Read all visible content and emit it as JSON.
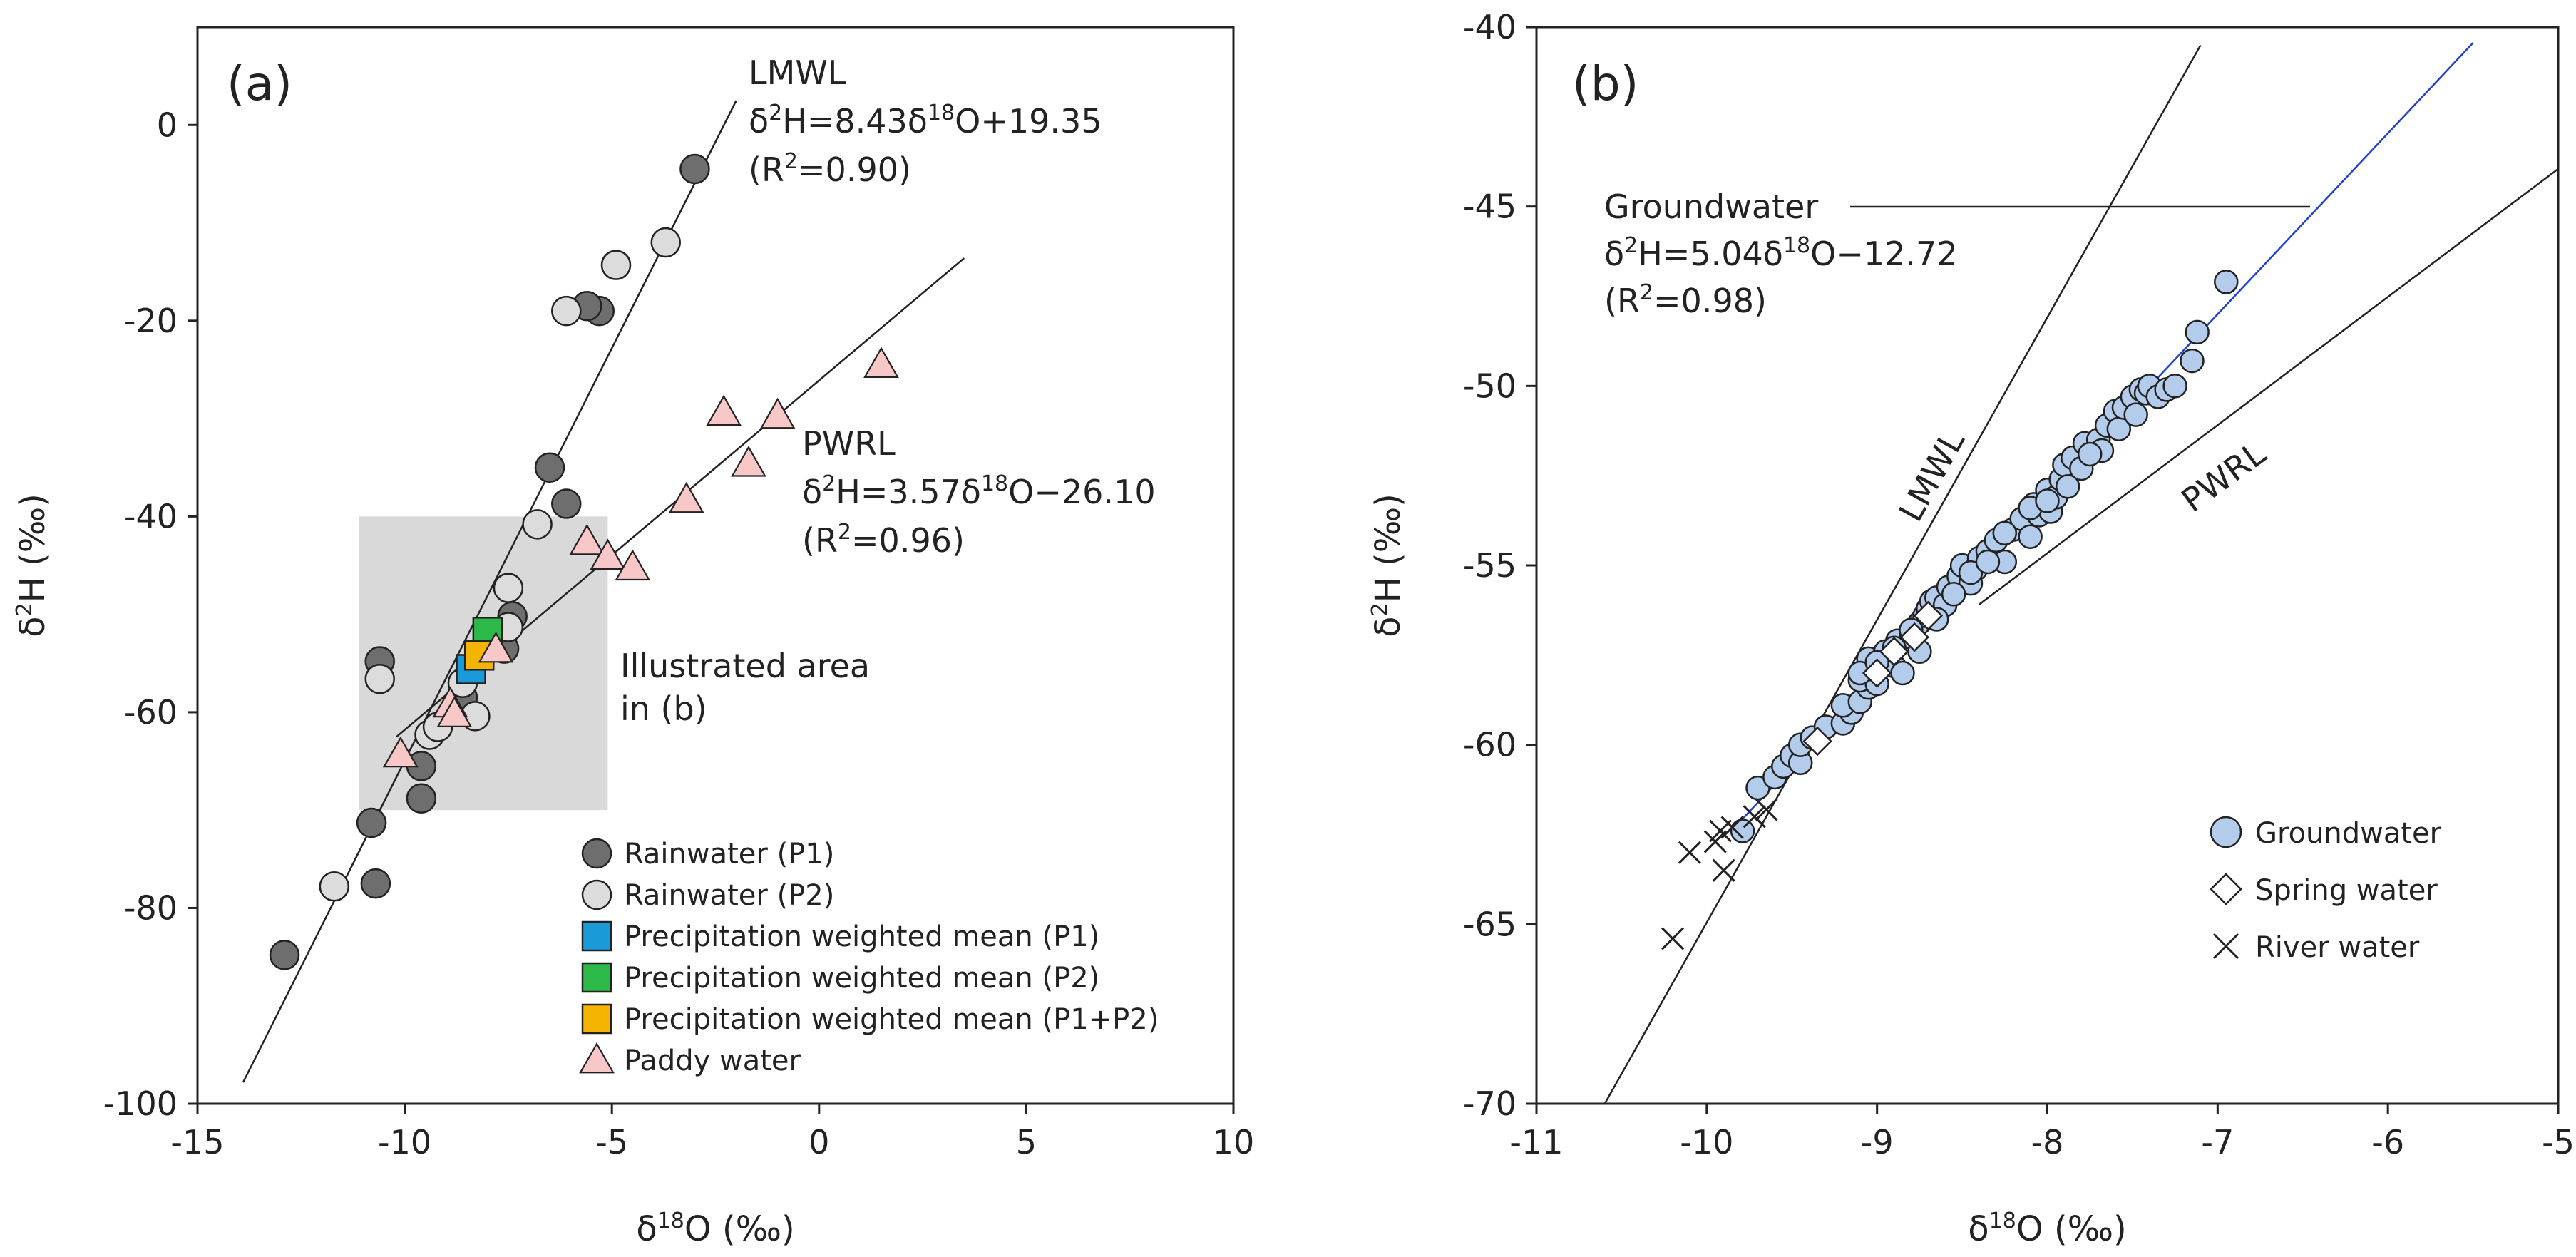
{
  "chart_data": [
    {
      "panel": "(a)",
      "type": "scatter",
      "xlabel": "δ18O (‰)",
      "ylabel": "δ2H (‰)",
      "xlim": [
        -15,
        10
      ],
      "ylim": [
        -100,
        10
      ],
      "xticks": [
        -15,
        -10,
        -5,
        0,
        5,
        10
      ],
      "yticks": [
        -100,
        -80,
        -60,
        -40,
        -20,
        0
      ],
      "shaded_area": {
        "x": [
          -11.1,
          -5.1
        ],
        "y": [
          -70,
          -40
        ],
        "label_line1": "Illustrated area",
        "label_line2": "in (b)"
      },
      "lines": [
        {
          "name": "LMWL",
          "slope": 8.43,
          "intercept": 19.35,
          "x_range": [
            -13.9,
            -2.0
          ],
          "eq_pre": "δ",
          "eq_sup1": "2",
          "eq_mid": "H=8.43δ",
          "eq_sup2": "18",
          "eq_post": "O+19.35",
          "r2_pre": "(R",
          "r2_sup": "2",
          "r2_post": "=0.90)"
        },
        {
          "name": "PWRL",
          "slope": 3.57,
          "intercept": -26.1,
          "x_range": [
            -10.2,
            3.5
          ],
          "eq_pre": "δ",
          "eq_sup1": "2",
          "eq_mid": "H=3.57δ",
          "eq_sup2": "18",
          "eq_post": "O−26.10",
          "r2_pre": "(R",
          "r2_sup": "2",
          "r2_post": "=0.96)"
        }
      ],
      "series": [
        {
          "name": "Rainwater (P1)",
          "marker": "circle",
          "color": "#6e6e6e",
          "points": [
            [
              -12.9,
              -84.8
            ],
            [
              -10.7,
              -77.5
            ],
            [
              -10.8,
              -71.3
            ],
            [
              -9.6,
              -68.8
            ],
            [
              -9.6,
              -65.5
            ],
            [
              -10.6,
              -54.8
            ],
            [
              -8.6,
              -58.5
            ],
            [
              -7.4,
              -50.2
            ],
            [
              -7.6,
              -53.5
            ],
            [
              -6.1,
              -38.7
            ],
            [
              -6.5,
              -35.0
            ],
            [
              -5.3,
              -19.0
            ],
            [
              -5.6,
              -18.5
            ],
            [
              -3.0,
              -4.5
            ]
          ]
        },
        {
          "name": "Rainwater (P2)",
          "marker": "circle",
          "color": "#dcdcdc",
          "points": [
            [
              -11.7,
              -77.8
            ],
            [
              -10.6,
              -56.6
            ],
            [
              -9.4,
              -62.3
            ],
            [
              -9.2,
              -61.5
            ],
            [
              -8.3,
              -60.4
            ],
            [
              -8.6,
              -57.0
            ],
            [
              -7.5,
              -51.3
            ],
            [
              -7.5,
              -47.3
            ],
            [
              -6.8,
              -40.8
            ],
            [
              -6.1,
              -19.0
            ],
            [
              -4.9,
              -14.3
            ],
            [
              -3.7,
              -12.0
            ]
          ]
        },
        {
          "name": "Precipitation weighted mean (P1)",
          "marker": "square",
          "color": "#1b9ad9",
          "points": [
            [
              -8.4,
              -55.6
            ]
          ]
        },
        {
          "name": "Precipitation weighted mean (P2)",
          "marker": "square",
          "color": "#2db84a",
          "points": [
            [
              -8.0,
              -51.8
            ]
          ]
        },
        {
          "name": "Precipitation weighted mean (P1+P2)",
          "marker": "square",
          "color": "#f4b400",
          "points": [
            [
              -8.2,
              -54.2
            ]
          ]
        },
        {
          "name": "Paddy water",
          "marker": "triangle",
          "color": "#f8c7c7",
          "points": [
            [
              -10.1,
              -64.3
            ],
            [
              -8.9,
              -59.2
            ],
            [
              -8.8,
              -60.2
            ],
            [
              -7.8,
              -53.6
            ],
            [
              -5.6,
              -42.6
            ],
            [
              -5.1,
              -44.1
            ],
            [
              -4.5,
              -45.2
            ],
            [
              -3.2,
              -38.3
            ],
            [
              -2.3,
              -29.4
            ],
            [
              -1.7,
              -34.6
            ],
            [
              -1.0,
              -29.7
            ],
            [
              1.5,
              -24.5
            ]
          ]
        }
      ]
    },
    {
      "panel": "(b)",
      "type": "scatter",
      "xlabel": "δ18O (‰)",
      "ylabel": "δ2H (‰)",
      "xlim": [
        -11,
        -5
      ],
      "ylim": [
        -70,
        -40
      ],
      "xticks": [
        -11,
        -10,
        -9,
        -8,
        -7,
        -6,
        -5
      ],
      "yticks": [
        -70,
        -65,
        -60,
        -55,
        -50,
        -45,
        -40
      ],
      "lines": [
        {
          "name": "LMWL",
          "slope": 8.43,
          "intercept": 19.35,
          "x_range": [
            -10.6,
            -7.1
          ],
          "label": "LMWL"
        },
        {
          "name": "PWRL",
          "slope": 3.57,
          "intercept": -26.1,
          "x_range": [
            -8.4,
            -5.0
          ],
          "label": "PWRL"
        },
        {
          "name": "Groundwater",
          "slope": 5.04,
          "intercept": -12.72,
          "x_range": [
            -9.8,
            -5.5
          ],
          "color": "#1f3fd8",
          "title": "Groundwater",
          "eq_pre": "δ",
          "eq_sup1": "2",
          "eq_mid": "H=5.04δ",
          "eq_sup2": "18",
          "eq_post": "O−12.72",
          "r2_pre": "(R",
          "r2_sup": "2",
          "r2_post": "=0.98)"
        }
      ],
      "series": [
        {
          "name": "Groundwater",
          "marker": "circle",
          "color": "#b4ccec",
          "points": [
            [
              -9.79,
              -62.4
            ],
            [
              -9.7,
              -61.2
            ],
            [
              -9.6,
              -60.9
            ],
            [
              -9.55,
              -60.6
            ],
            [
              -9.5,
              -60.3
            ],
            [
              -9.45,
              -60.5
            ],
            [
              -9.45,
              -60.0
            ],
            [
              -9.38,
              -59.8
            ],
            [
              -9.3,
              -59.5
            ],
            [
              -9.2,
              -59.4
            ],
            [
              -9.15,
              -59.1
            ],
            [
              -9.2,
              -58.9
            ],
            [
              -9.1,
              -58.8
            ],
            [
              -9.05,
              -58.4
            ],
            [
              -9.1,
              -58.2
            ],
            [
              -9.0,
              -58.3
            ],
            [
              -9.02,
              -57.9
            ],
            [
              -9.05,
              -57.6
            ],
            [
              -8.95,
              -57.4
            ],
            [
              -8.9,
              -57.8
            ],
            [
              -8.88,
              -57.1
            ],
            [
              -8.85,
              -58.0
            ],
            [
              -8.8,
              -57.0
            ],
            [
              -8.75,
              -56.6
            ],
            [
              -8.72,
              -56.4
            ],
            [
              -8.75,
              -57.4
            ],
            [
              -8.7,
              -56.2
            ],
            [
              -8.68,
              -56.0
            ],
            [
              -8.65,
              -55.9
            ],
            [
              -8.6,
              -56.1
            ],
            [
              -8.58,
              -55.6
            ],
            [
              -8.52,
              -55.3
            ],
            [
              -8.5,
              -55.0
            ],
            [
              -8.45,
              -55.5
            ],
            [
              -8.42,
              -55.1
            ],
            [
              -8.4,
              -54.8
            ],
            [
              -8.35,
              -54.6
            ],
            [
              -8.3,
              -54.3
            ],
            [
              -8.25,
              -54.9
            ],
            [
              -8.2,
              -54.0
            ],
            [
              -8.15,
              -53.7
            ],
            [
              -8.1,
              -54.2
            ],
            [
              -8.08,
              -53.3
            ],
            [
              -8.05,
              -53.6
            ],
            [
              -8.0,
              -52.9
            ],
            [
              -7.98,
              -53.5
            ],
            [
              -7.95,
              -53.1
            ],
            [
              -7.92,
              -52.6
            ],
            [
              -7.9,
              -52.2
            ],
            [
              -7.85,
              -52.0
            ],
            [
              -7.8,
              -52.3
            ],
            [
              -7.78,
              -51.6
            ],
            [
              -7.7,
              -51.5
            ],
            [
              -7.68,
              -51.8
            ],
            [
              -7.65,
              -51.1
            ],
            [
              -7.6,
              -50.7
            ],
            [
              -7.58,
              -51.2
            ],
            [
              -7.55,
              -50.6
            ],
            [
              -7.5,
              -50.3
            ],
            [
              -7.48,
              -50.8
            ],
            [
              -7.45,
              -50.1
            ],
            [
              -7.42,
              -50.2
            ],
            [
              -7.4,
              -50.0
            ],
            [
              -7.35,
              -50.3
            ],
            [
              -7.3,
              -50.1
            ],
            [
              -7.25,
              -50.0
            ],
            [
              -7.15,
              -49.3
            ],
            [
              -7.12,
              -48.5
            ],
            [
              -6.95,
              -47.1
            ],
            [
              -9.1,
              -58.0
            ],
            [
              -9.0,
              -57.7
            ],
            [
              -8.9,
              -57.3
            ],
            [
              -8.8,
              -56.8
            ],
            [
              -8.65,
              -56.5
            ],
            [
              -8.55,
              -55.8
            ],
            [
              -8.45,
              -55.2
            ],
            [
              -8.35,
              -54.9
            ],
            [
              -8.25,
              -54.1
            ],
            [
              -8.1,
              -53.4
            ],
            [
              -8.0,
              -53.2
            ],
            [
              -7.88,
              -52.8
            ],
            [
              -7.75,
              -51.9
            ]
          ]
        },
        {
          "name": "Spring water",
          "marker": "diamond",
          "color": "#ffffff",
          "points": [
            [
              -9.35,
              -59.9
            ],
            [
              -9.0,
              -58.0
            ],
            [
              -8.9,
              -57.4
            ],
            [
              -8.78,
              -57.0
            ],
            [
              -8.7,
              -56.4
            ]
          ]
        },
        {
          "name": "River water",
          "marker": "cross",
          "color": "#222222",
          "points": [
            [
              -10.2,
              -65.4
            ],
            [
              -10.1,
              -63.0
            ],
            [
              -9.95,
              -62.7
            ],
            [
              -9.9,
              -63.5
            ],
            [
              -9.85,
              -62.3
            ],
            [
              -9.72,
              -62.0
            ],
            [
              -9.65,
              -61.8
            ],
            [
              -9.92,
              -62.4
            ]
          ]
        }
      ]
    }
  ]
}
